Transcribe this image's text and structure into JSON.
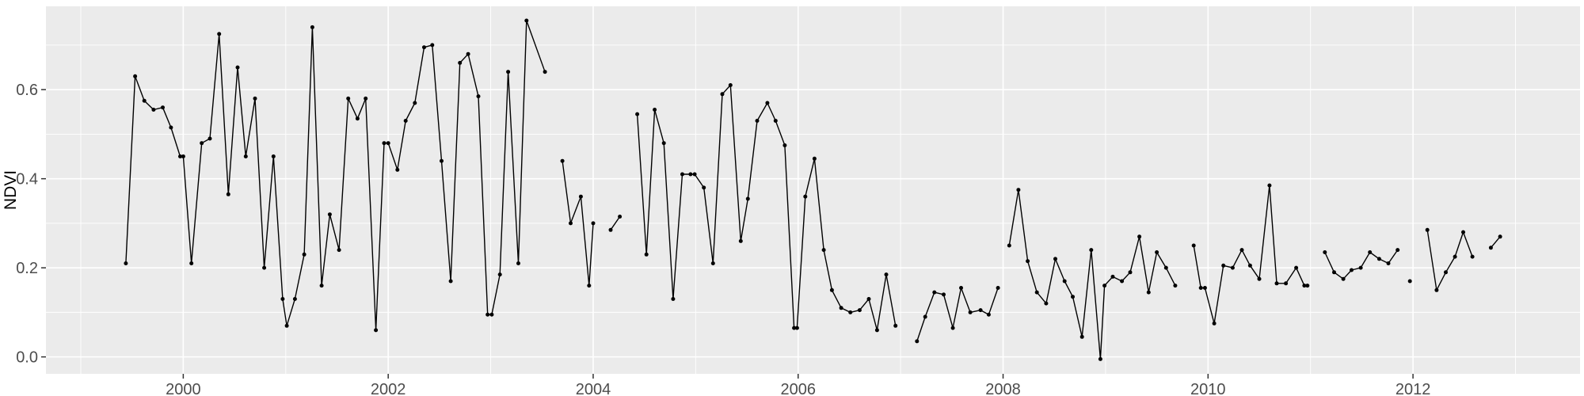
{
  "figure": {
    "title": "",
    "ylabel": "NDVI",
    "xlabel": ""
  },
  "chart_data": {
    "type": "line",
    "title": "",
    "xlabel": "",
    "ylabel": "NDVI",
    "legend": "none",
    "grid": true,
    "panel_background": "#EBEBEB",
    "grid_color": "#FFFFFF",
    "line_color": "#000000",
    "point_color": "#000000",
    "tick_label_color": "#4D4D4D",
    "axis_title_color": "#000000",
    "tick_mark_color": "#333333",
    "xlim": [
      1998.66,
      2013.63
    ],
    "ylim": [
      -0.038,
      0.787
    ],
    "x_ticks": [
      2000,
      2002,
      2004,
      2006,
      2008,
      2010,
      2012
    ],
    "x_minor_ticks": [
      1999,
      2001,
      2003,
      2005,
      2007,
      2009,
      2011,
      2013
    ],
    "y_ticks": [
      0.0,
      0.2,
      0.4,
      0.6
    ],
    "y_minor_ticks": [
      0.1,
      0.3,
      0.5,
      0.7
    ],
    "y_tick_labels": [
      "0.0",
      "0.2",
      "0.4",
      "0.6"
    ],
    "x_tick_labels": [
      "2000",
      "2002",
      "2004",
      "2006",
      "2008",
      "2010",
      "2012"
    ],
    "series": [
      {
        "name": "NDVI",
        "color": "#000000",
        "segments": [
          [
            [
              1999.44,
              0.21
            ],
            [
              1999.53,
              0.63
            ],
            [
              1999.62,
              0.575
            ],
            [
              1999.71,
              0.555
            ],
            [
              1999.8,
              0.56
            ],
            [
              1999.88,
              0.515
            ],
            [
              1999.97,
              0.45
            ],
            [
              2000.0,
              0.45
            ],
            [
              2000.08,
              0.21
            ],
            [
              2000.18,
              0.48
            ],
            [
              2000.26,
              0.49
            ],
            [
              2000.35,
              0.725
            ],
            [
              2000.44,
              0.365
            ],
            [
              2000.53,
              0.65
            ],
            [
              2000.61,
              0.45
            ],
            [
              2000.7,
              0.58
            ],
            [
              2000.79,
              0.2
            ],
            [
              2000.88,
              0.45
            ],
            [
              2000.97,
              0.13
            ],
            [
              2001.01,
              0.07
            ],
            [
              2001.09,
              0.13
            ],
            [
              2001.18,
              0.23
            ],
            [
              2001.26,
              0.74
            ],
            [
              2001.35,
              0.16
            ],
            [
              2001.43,
              0.32
            ],
            [
              2001.52,
              0.24
            ],
            [
              2001.61,
              0.58
            ],
            [
              2001.7,
              0.535
            ],
            [
              2001.78,
              0.58
            ],
            [
              2001.88,
              0.06
            ],
            [
              2001.96,
              0.48
            ],
            [
              2002.0,
              0.48
            ],
            [
              2002.09,
              0.42
            ],
            [
              2002.17,
              0.53
            ],
            [
              2002.26,
              0.57
            ],
            [
              2002.35,
              0.695
            ],
            [
              2002.43,
              0.7
            ],
            [
              2002.52,
              0.44
            ],
            [
              2002.61,
              0.17
            ],
            [
              2002.7,
              0.66
            ],
            [
              2002.78,
              0.68
            ],
            [
              2002.88,
              0.585
            ],
            [
              2002.97,
              0.095
            ],
            [
              2003.01,
              0.095
            ],
            [
              2003.09,
              0.185
            ],
            [
              2003.17,
              0.64
            ],
            [
              2003.27,
              0.21
            ],
            [
              2003.35,
              0.755
            ],
            [
              2003.53,
              0.64
            ]
          ],
          [
            [
              2003.7,
              0.44
            ],
            [
              2003.78,
              0.3
            ],
            [
              2003.88,
              0.36
            ],
            [
              2003.96,
              0.16
            ],
            [
              2004.0,
              0.3
            ]
          ],
          [
            [
              2004.17,
              0.285
            ],
            [
              2004.26,
              0.315
            ]
          ],
          [
            [
              2004.43,
              0.545
            ],
            [
              2004.52,
              0.23
            ],
            [
              2004.6,
              0.555
            ],
            [
              2004.69,
              0.48
            ],
            [
              2004.78,
              0.13
            ],
            [
              2004.87,
              0.41
            ],
            [
              2004.95,
              0.41
            ],
            [
              2004.99,
              0.41
            ],
            [
              2005.08,
              0.38
            ],
            [
              2005.17,
              0.21
            ],
            [
              2005.26,
              0.59
            ],
            [
              2005.34,
              0.61
            ],
            [
              2005.44,
              0.26
            ],
            [
              2005.51,
              0.355
            ],
            [
              2005.6,
              0.53
            ],
            [
              2005.7,
              0.57
            ],
            [
              2005.78,
              0.53
            ],
            [
              2005.87,
              0.475
            ],
            [
              2005.96,
              0.065
            ],
            [
              2005.99,
              0.065
            ],
            [
              2006.07,
              0.36
            ],
            [
              2006.16,
              0.445
            ],
            [
              2006.25,
              0.24
            ],
            [
              2006.33,
              0.15
            ],
            [
              2006.42,
              0.11
            ],
            [
              2006.51,
              0.1
            ],
            [
              2006.6,
              0.105
            ],
            [
              2006.69,
              0.13
            ],
            [
              2006.77,
              0.06
            ],
            [
              2006.86,
              0.185
            ],
            [
              2006.95,
              0.07
            ]
          ],
          [
            [
              2007.16,
              0.035
            ],
            [
              2007.24,
              0.09
            ],
            [
              2007.33,
              0.145
            ],
            [
              2007.42,
              0.14
            ],
            [
              2007.51,
              0.065
            ],
            [
              2007.59,
              0.155
            ],
            [
              2007.68,
              0.1
            ],
            [
              2007.78,
              0.105
            ],
            [
              2007.86,
              0.095
            ],
            [
              2007.95,
              0.155
            ]
          ],
          [
            [
              2008.06,
              0.25
            ],
            [
              2008.15,
              0.375
            ],
            [
              2008.24,
              0.215
            ],
            [
              2008.33,
              0.145
            ],
            [
              2008.42,
              0.12
            ],
            [
              2008.51,
              0.22
            ],
            [
              2008.6,
              0.17
            ],
            [
              2008.68,
              0.135
            ],
            [
              2008.77,
              0.045
            ],
            [
              2008.86,
              0.24
            ],
            [
              2008.95,
              -0.005
            ],
            [
              2008.99,
              0.16
            ],
            [
              2009.07,
              0.18
            ],
            [
              2009.16,
              0.17
            ],
            [
              2009.24,
              0.19
            ],
            [
              2009.33,
              0.27
            ],
            [
              2009.42,
              0.145
            ],
            [
              2009.5,
              0.235
            ],
            [
              2009.59,
              0.2
            ],
            [
              2009.68,
              0.16
            ]
          ],
          [
            [
              2009.86,
              0.25
            ],
            [
              2009.93,
              0.155
            ],
            [
              2009.97,
              0.155
            ],
            [
              2010.06,
              0.075
            ],
            [
              2010.15,
              0.205
            ],
            [
              2010.24,
              0.2
            ],
            [
              2010.33,
              0.24
            ],
            [
              2010.41,
              0.205
            ],
            [
              2010.5,
              0.175
            ],
            [
              2010.6,
              0.385
            ],
            [
              2010.67,
              0.165
            ],
            [
              2010.76,
              0.165
            ],
            [
              2010.86,
              0.2
            ],
            [
              2010.94,
              0.16
            ],
            [
              2010.97,
              0.16
            ]
          ],
          [
            [
              2011.14,
              0.235
            ],
            [
              2011.23,
              0.19
            ],
            [
              2011.32,
              0.175
            ],
            [
              2011.4,
              0.195
            ],
            [
              2011.49,
              0.2
            ],
            [
              2011.58,
              0.235
            ],
            [
              2011.67,
              0.22
            ],
            [
              2011.76,
              0.21
            ],
            [
              2011.85,
              0.24
            ]
          ],
          [
            [
              2011.97,
              0.17
            ]
          ],
          [
            [
              2012.14,
              0.285
            ],
            [
              2012.23,
              0.15
            ],
            [
              2012.32,
              0.19
            ],
            [
              2012.41,
              0.225
            ],
            [
              2012.49,
              0.28
            ],
            [
              2012.58,
              0.225
            ]
          ],
          [
            [
              2012.76,
              0.245
            ],
            [
              2012.85,
              0.27
            ]
          ]
        ]
      }
    ]
  }
}
